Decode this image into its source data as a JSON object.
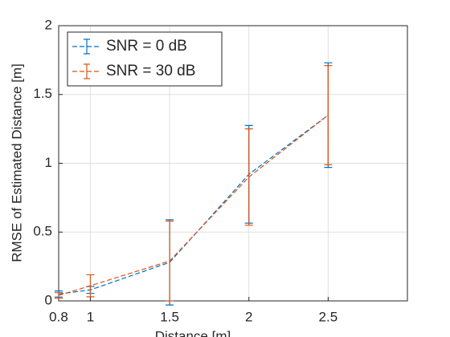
{
  "chart_data": {
    "type": "errorbar",
    "xlabel": "Distance [m]",
    "ylabel": "RMSE of Estimated Distance [m]",
    "x": [
      0.8,
      1,
      1.5,
      2,
      2.5
    ],
    "series": [
      {
        "name": "SNR = 0 dB",
        "color": "#0072bd",
        "values": [
          0.05,
          0.08,
          0.28,
          0.92,
          1.35
        ],
        "errors": [
          0.022,
          0.025,
          0.31,
          0.355,
          0.38
        ]
      },
      {
        "name": "SNR = 30 dB",
        "color": "#d95319",
        "values": [
          0.04,
          0.11,
          0.29,
          0.9,
          1.35
        ],
        "errors": [
          0.02,
          0.08,
          0.29,
          0.35,
          0.36
        ]
      }
    ],
    "xlim": [
      0.8,
      3
    ],
    "xticks": [
      0.8,
      1,
      1.5,
      2,
      2.5
    ],
    "ylim": [
      0,
      2
    ],
    "yticks": [
      0,
      0.5,
      1,
      1.5,
      2
    ],
    "grid": true,
    "legend": "northwest"
  }
}
